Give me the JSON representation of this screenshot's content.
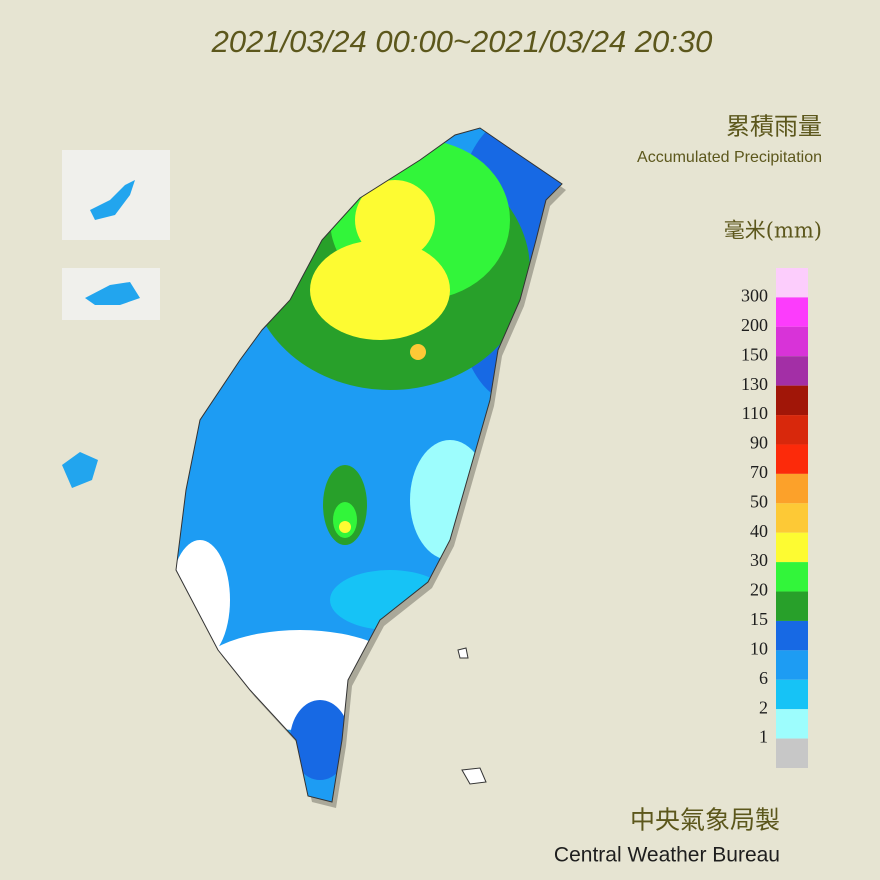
{
  "title": "2021/03/24 00:00~2021/03/24 20:30",
  "legend": {
    "title": "累積雨量",
    "subtitle": "Accumulated Precipitation",
    "unit": "毫米(mm)",
    "labels": [
      300,
      200,
      150,
      130,
      110,
      90,
      70,
      50,
      40,
      30,
      20,
      15,
      10,
      6,
      2,
      1
    ],
    "colors": [
      "#fccdfc",
      "#fc3cfc",
      "#d833d8",
      "#a32fa6",
      "#a11608",
      "#d8280c",
      "#fc2a0a",
      "#fca12a",
      "#fdc936",
      "#fdfb32",
      "#32f53a",
      "#28a02a",
      "#1769e4",
      "#1d9cf3",
      "#16c3f6",
      "#9dfdfd",
      "#c7c7c7"
    ]
  },
  "footer": {
    "chinese": "中央氣象局製",
    "english": "Central Weather Bureau"
  }
}
